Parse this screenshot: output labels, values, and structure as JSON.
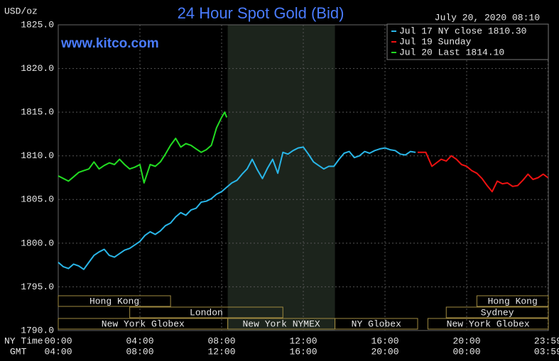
{
  "chart_data": {
    "type": "line",
    "title": "24 Hour Spot Gold (Bid)",
    "unit_label": "USD/oz",
    "timestamp": "July 20, 2020 08:10",
    "website": "www.kitco.com",
    "x_row_labels": [
      "NY Time",
      "GMT"
    ],
    "xlim": [
      0,
      24
    ],
    "xticks": [
      {
        "value": 0,
        "label": "00:00"
      },
      {
        "value": 4,
        "label": "04:00"
      },
      {
        "value": 8,
        "label": "08:00"
      },
      {
        "value": 12,
        "label": "12:00"
      },
      {
        "value": 16,
        "label": "16:00"
      },
      {
        "value": 20,
        "label": "20:00"
      },
      {
        "value": 23.98,
        "label": "23:59"
      }
    ],
    "gmt_labels": [
      "04:00",
      "08:00",
      "12:00",
      "16:00",
      "20:00",
      "00:00",
      "03:59"
    ],
    "ylim": [
      1790,
      1825
    ],
    "yticks": [
      {
        "value": 1790,
        "label": "1790.0"
      },
      {
        "value": 1795,
        "label": "1795.0"
      },
      {
        "value": 1800,
        "label": "1800.0"
      },
      {
        "value": 1805,
        "label": "1805.0"
      },
      {
        "value": 1810,
        "label": "1810.0"
      },
      {
        "value": 1815,
        "label": "1815.0"
      },
      {
        "value": 1820,
        "label": "1820.0"
      },
      {
        "value": 1825,
        "label": "1825.0"
      }
    ],
    "grid": true,
    "shaded_span": [
      8.3,
      13.55
    ],
    "series": [
      {
        "name": "Jul 17 NY close 1810.30",
        "color": "#29b6e8",
        "x": [
          0,
          0.25,
          0.5,
          0.75,
          1,
          1.25,
          1.5,
          1.75,
          2,
          2.25,
          2.5,
          2.75,
          3,
          3.25,
          3.5,
          3.75,
          4,
          4.25,
          4.5,
          4.75,
          5,
          5.25,
          5.5,
          5.75,
          6,
          6.25,
          6.5,
          6.75,
          7,
          7.25,
          7.5,
          7.75,
          8,
          8.25,
          8.5,
          8.75,
          9,
          9.25,
          9.5,
          9.75,
          10,
          10.25,
          10.5,
          10.75,
          11,
          11.25,
          11.5,
          11.75,
          12,
          12.25,
          12.5,
          12.75,
          13,
          13.25,
          13.5,
          13.75,
          14,
          14.25,
          14.5,
          14.75,
          15,
          15.25,
          15.5,
          15.75,
          16,
          16.25,
          16.5,
          16.75,
          17,
          17.25,
          17.5
        ],
        "values": [
          1797.8,
          1797.3,
          1797.1,
          1797.6,
          1797.4,
          1797.0,
          1797.8,
          1798.6,
          1799.0,
          1799.3,
          1798.6,
          1798.4,
          1798.8,
          1799.2,
          1799.4,
          1799.8,
          1800.2,
          1800.9,
          1801.3,
          1801.0,
          1801.4,
          1802.0,
          1802.3,
          1803.0,
          1803.5,
          1803.2,
          1803.8,
          1804.0,
          1804.7,
          1804.8,
          1805.1,
          1805.6,
          1805.9,
          1806.4,
          1806.9,
          1807.2,
          1807.9,
          1808.5,
          1809.6,
          1808.4,
          1807.4,
          1808.6,
          1809.6,
          1808.0,
          1810.4,
          1810.2,
          1810.6,
          1810.9,
          1811.0,
          1810.2,
          1809.3,
          1808.9,
          1808.5,
          1808.8,
          1808.8,
          1809.6,
          1810.3,
          1810.5,
          1809.8,
          1810.0,
          1810.5,
          1810.3,
          1810.6,
          1810.8,
          1810.9,
          1810.7,
          1810.6,
          1810.2,
          1810.1,
          1810.5,
          1810.4
        ]
      },
      {
        "name": "Jul 19 Sunday",
        "color": "#ee1111",
        "x": [
          17.6,
          18.0,
          18.3,
          18.75,
          19.0,
          19.25,
          19.5,
          19.75,
          20.0,
          20.25,
          20.5,
          20.75,
          21.0,
          21.25,
          21.5,
          21.75,
          22.0,
          22.25,
          22.5,
          22.75,
          23.0,
          23.25,
          23.5,
          23.75,
          23.98
        ],
        "values": [
          1810.4,
          1810.4,
          1808.8,
          1809.6,
          1809.4,
          1810.0,
          1809.6,
          1809.0,
          1808.8,
          1808.3,
          1808.0,
          1807.4,
          1806.6,
          1805.9,
          1807.1,
          1806.8,
          1806.9,
          1806.5,
          1806.6,
          1807.2,
          1807.9,
          1807.3,
          1807.5,
          1807.9,
          1807.5
        ]
      },
      {
        "name": "Jul 20 Last 1814.10",
        "color": "#22dd22",
        "x": [
          0,
          0.25,
          0.5,
          0.75,
          1,
          1.25,
          1.5,
          1.75,
          2,
          2.25,
          2.5,
          2.75,
          3,
          3.25,
          3.5,
          3.75,
          4,
          4.2,
          4.5,
          4.75,
          5,
          5.25,
          5.5,
          5.75,
          6,
          6.25,
          6.5,
          6.75,
          7,
          7.25,
          7.5,
          7.75,
          8,
          8.15,
          8.25
        ],
        "values": [
          1807.7,
          1807.4,
          1807.1,
          1807.6,
          1808.1,
          1808.3,
          1808.5,
          1809.3,
          1808.5,
          1808.9,
          1809.2,
          1809.0,
          1809.6,
          1809.0,
          1808.5,
          1808.7,
          1809.0,
          1806.9,
          1809.0,
          1808.8,
          1809.3,
          1810.2,
          1811.2,
          1812.0,
          1811.0,
          1811.4,
          1811.2,
          1810.8,
          1810.4,
          1810.7,
          1811.2,
          1813.2,
          1814.4,
          1815.0,
          1814.4
        ]
      }
    ],
    "sessions": [
      {
        "name": "Hong Kong",
        "start": 0,
        "end": 5.5,
        "row": 0
      },
      {
        "name": "Hong Kong",
        "start": 20.5,
        "end": 24,
        "row": 0
      },
      {
        "name": "London",
        "start": 3.5,
        "end": 11,
        "row": 1
      },
      {
        "name": "Sydney",
        "start": 19,
        "end": 24,
        "row": 1
      },
      {
        "name": "New York Globex",
        "start": 0,
        "end": 8.3,
        "row": 2
      },
      {
        "name": "New York NYMEX",
        "start": 8.3,
        "end": 13.55,
        "row": 2
      },
      {
        "name": "NY Globex",
        "start": 13.55,
        "end": 17.6,
        "row": 2
      },
      {
        "name": "New York Globex",
        "start": 18.1,
        "end": 24,
        "row": 2
      }
    ]
  }
}
